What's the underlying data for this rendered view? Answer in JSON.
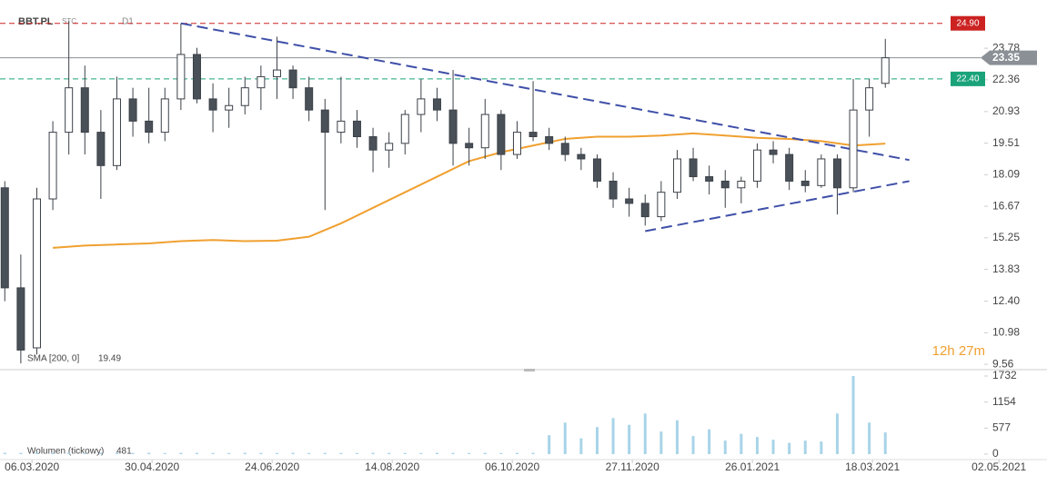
{
  "chart_data": {
    "type": "candlestick",
    "title": "BBT.PL",
    "interval": "STC",
    "timeframe": "D1",
    "x": [
      0,
      1,
      2,
      3,
      4,
      5,
      6,
      7,
      8,
      9,
      10,
      11,
      12,
      13,
      14,
      15,
      16,
      17,
      18,
      19,
      20,
      21,
      22,
      23,
      24,
      25,
      26,
      27,
      28,
      29,
      30,
      31,
      32,
      33,
      34,
      35,
      36,
      37,
      38,
      39,
      40,
      41,
      42,
      43,
      44,
      45,
      46,
      47,
      48,
      49,
      50,
      51,
      52,
      53,
      54,
      55
    ],
    "open": [
      17.5,
      13,
      10.3,
      17,
      20,
      22,
      20,
      18.5,
      21.5,
      20.5,
      20,
      21.5,
      23.5,
      21.5,
      21,
      21.2,
      22,
      22.5,
      22.8,
      22,
      21,
      20,
      20.5,
      19.8,
      19.2,
      19.5,
      20.8,
      21.5,
      21,
      19.5,
      19.3,
      20.8,
      19,
      20,
      19.8,
      19.5,
      19,
      18.8,
      17.8,
      17,
      16.8,
      16.2,
      17.3,
      18.8,
      18,
      17.8,
      17.5,
      17.8,
      19.2,
      19,
      17.8,
      17.6,
      18.8,
      17.5,
      21,
      22.2
    ],
    "high": [
      17.8,
      14.5,
      17.5,
      20.5,
      25,
      23,
      21,
      22.5,
      22,
      22,
      22,
      24.9,
      23.8,
      22.2,
      22,
      22.5,
      23,
      24.3,
      23,
      22.5,
      21.5,
      22.5,
      21,
      20.2,
      20,
      21,
      22.4,
      22,
      22.8,
      20.2,
      21.5,
      21,
      20.5,
      22.3,
      20.2,
      19.8,
      19.3,
      19,
      18.2,
      17.5,
      17.2,
      17.8,
      19.2,
      19.3,
      18.5,
      18.3,
      18,
      19.5,
      19.6,
      19.3,
      18.3,
      19,
      19,
      22.4,
      22.4,
      24.2
    ],
    "low": [
      12.4,
      9.6,
      10,
      16.5,
      19,
      19,
      17,
      18.3,
      19.8,
      19.5,
      19.6,
      21,
      21.3,
      20,
      20.2,
      20.8,
      21,
      21.5,
      21.5,
      20.5,
      16.5,
      19.5,
      19.3,
      18.2,
      18.4,
      19,
      20,
      20.5,
      18.5,
      18.5,
      18.8,
      18.3,
      18.8,
      19.6,
      19.2,
      18.7,
      18.3,
      17.5,
      16.6,
      16.2,
      15.8,
      16,
      17,
      17.8,
      17.2,
      16.6,
      16.8,
      17.5,
      18.6,
      17.4,
      17.3,
      17.5,
      16.3,
      17.3,
      19.8,
      22
    ],
    "close": [
      13,
      10.2,
      17,
      20,
      22,
      20,
      18.5,
      21.5,
      20.5,
      20,
      21.5,
      23.5,
      21.5,
      21,
      21.2,
      22,
      22.5,
      22.8,
      22,
      21,
      20,
      20.5,
      19.8,
      19.2,
      19.5,
      20.8,
      21.5,
      21,
      19.5,
      19.3,
      20.8,
      19,
      20,
      19.8,
      19.5,
      19,
      18.8,
      17.8,
      17,
      16.8,
      16.2,
      17.3,
      18.8,
      18,
      17.8,
      17.5,
      17.8,
      19.2,
      19,
      17.8,
      17.6,
      18.8,
      17.5,
      21,
      22,
      23.35
    ],
    "up_color": "#ffffff",
    "down_color": "#4a5058",
    "wick_color": "#3b4148",
    "xlim": [
      -0.3,
      65.1
    ],
    "xticks": [
      {
        "value": 1.7,
        "label": "06.03.2020"
      },
      {
        "value": 9.2,
        "label": "30.04.2020"
      },
      {
        "value": 16.7,
        "label": "24.06.2020"
      },
      {
        "value": 24.2,
        "label": "14.08.2020"
      },
      {
        "value": 31.7,
        "label": "06.10.2020"
      },
      {
        "value": 39.2,
        "label": "27.11.2020"
      },
      {
        "value": 46.7,
        "label": "26.01.2021"
      },
      {
        "value": 54.2,
        "label": "18.03.2021"
      },
      {
        "value": 62.1,
        "label": "02.05.2021"
      }
    ],
    "ylim": [
      9.4,
      25.95
    ],
    "yticks": [
      9.56,
      10.98,
      {
        "value": 12.4,
        "label": "12.40"
      },
      13.83,
      15.25,
      16.67,
      18.09,
      19.51,
      20.93,
      22.36,
      23.78
    ],
    "sma": {
      "name": "SMA [200, 0]",
      "color": "#f0a030",
      "x": [
        3,
        5,
        7,
        9,
        11,
        13,
        15,
        17,
        19,
        21,
        23,
        25,
        27,
        29,
        31,
        33,
        35,
        37,
        39,
        41,
        43,
        45,
        47,
        49,
        51,
        53,
        55
      ],
      "values": [
        14.8,
        14.9,
        14.95,
        15,
        15.1,
        15.15,
        15.1,
        15.12,
        15.3,
        15.9,
        16.6,
        17.3,
        18,
        18.7,
        19.1,
        19.4,
        19.7,
        19.8,
        19.8,
        19.85,
        19.95,
        19.85,
        19.75,
        19.7,
        19.6,
        19.4,
        19.49
      ]
    },
    "trendlines": [
      {
        "color": "#3f4fa8",
        "x": [
          11,
          56.5
        ],
        "values": [
          24.9,
          18.75
        ]
      },
      {
        "color": "#3f4fa8",
        "x": [
          40,
          56.5
        ],
        "values": [
          15.55,
          17.8
        ]
      }
    ],
    "levels": [
      {
        "value": 24.9,
        "label": "24.90",
        "color": "#cc2222"
      },
      {
        "value": 22.4,
        "label": "22.40",
        "color": "#1aa37a"
      }
    ],
    "last_price": {
      "value": 23.35,
      "label": "23.35",
      "color": "#8a9096"
    },
    "volume": {
      "name": "Wolumen (tickowy)",
      "color": "#a8d4e8",
      "ylim": [
        0,
        1873
      ],
      "yticks": [
        0,
        577,
        1154,
        1732
      ],
      "values": [
        30,
        28,
        35,
        30,
        32,
        25,
        30,
        28,
        26,
        30,
        24,
        30,
        28,
        26,
        25,
        30,
        28,
        26,
        30,
        25,
        28,
        26,
        24,
        30,
        28,
        26,
        25,
        30,
        28,
        26,
        30,
        25,
        28,
        30,
        420,
        700,
        350,
        600,
        800,
        650,
        900,
        500,
        750,
        400,
        550,
        300,
        450,
        380,
        320,
        250,
        300,
        280,
        900,
        1732,
        700,
        481
      ]
    },
    "countdown": "12h 27m"
  }
}
